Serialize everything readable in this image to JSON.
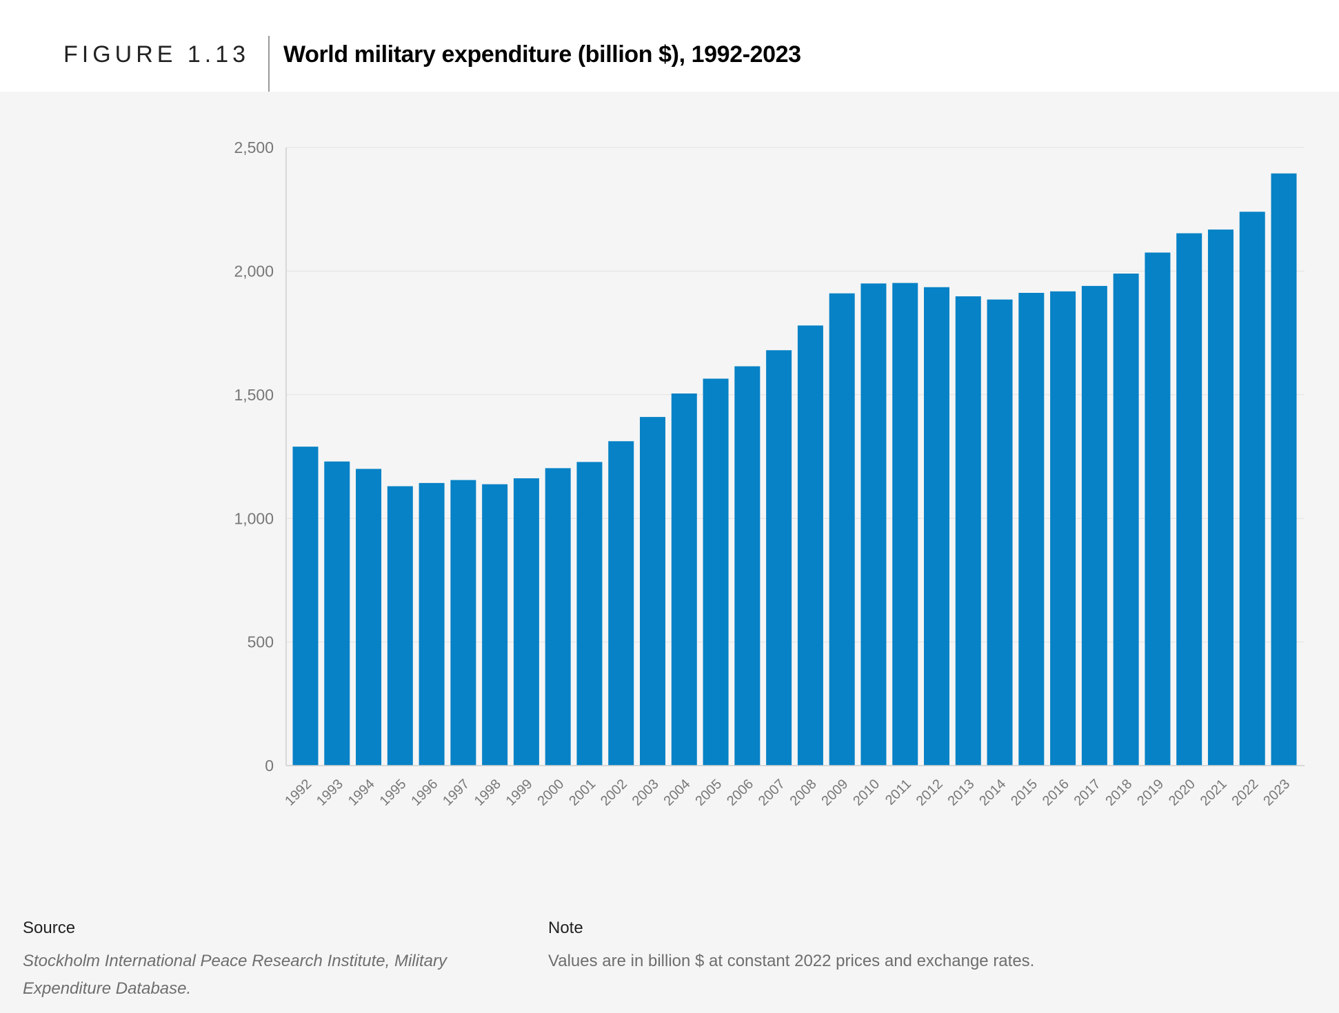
{
  "header": {
    "figure_label": "FIGURE 1.13",
    "title": "World military expenditure (billion $), 1992-2023"
  },
  "colors": {
    "bar": "#0782c6",
    "grid": "#e2e2e2",
    "axis": "#cfcfcf",
    "tick_text": "#777777"
  },
  "chart_data": {
    "type": "bar",
    "title": "World military expenditure (billion $), 1992-2023",
    "xlabel": "",
    "ylabel": "",
    "ylim": [
      0,
      2500
    ],
    "yticks": [
      0,
      500,
      1000,
      1500,
      2000,
      2500
    ],
    "ytick_labels": [
      "0",
      "500",
      "1,000",
      "1,500",
      "2,000",
      "2,500"
    ],
    "grid": true,
    "categories": [
      "1992",
      "1993",
      "1994",
      "1995",
      "1996",
      "1997",
      "1998",
      "1999",
      "2000",
      "2001",
      "2002",
      "2003",
      "2004",
      "2005",
      "2006",
      "2007",
      "2008",
      "2009",
      "2010",
      "2011",
      "2012",
      "2013",
      "2014",
      "2015",
      "2016",
      "2017",
      "2018",
      "2019",
      "2020",
      "2021",
      "2022",
      "2023"
    ],
    "values": [
      1290,
      1230,
      1200,
      1130,
      1143,
      1155,
      1138,
      1162,
      1203,
      1228,
      1312,
      1410,
      1505,
      1565,
      1615,
      1680,
      1780,
      1910,
      1950,
      1952,
      1935,
      1898,
      1885,
      1912,
      1918,
      1940,
      1990,
      2075,
      2153,
      2168,
      2240,
      2395
    ]
  },
  "footer": {
    "source_label": "Source",
    "source_text": "Stockholm International Peace Research Institute, Military Expenditure Database.",
    "note_label": "Note",
    "note_text": "Values are in billion $ at constant 2022 prices and exchange rates."
  }
}
